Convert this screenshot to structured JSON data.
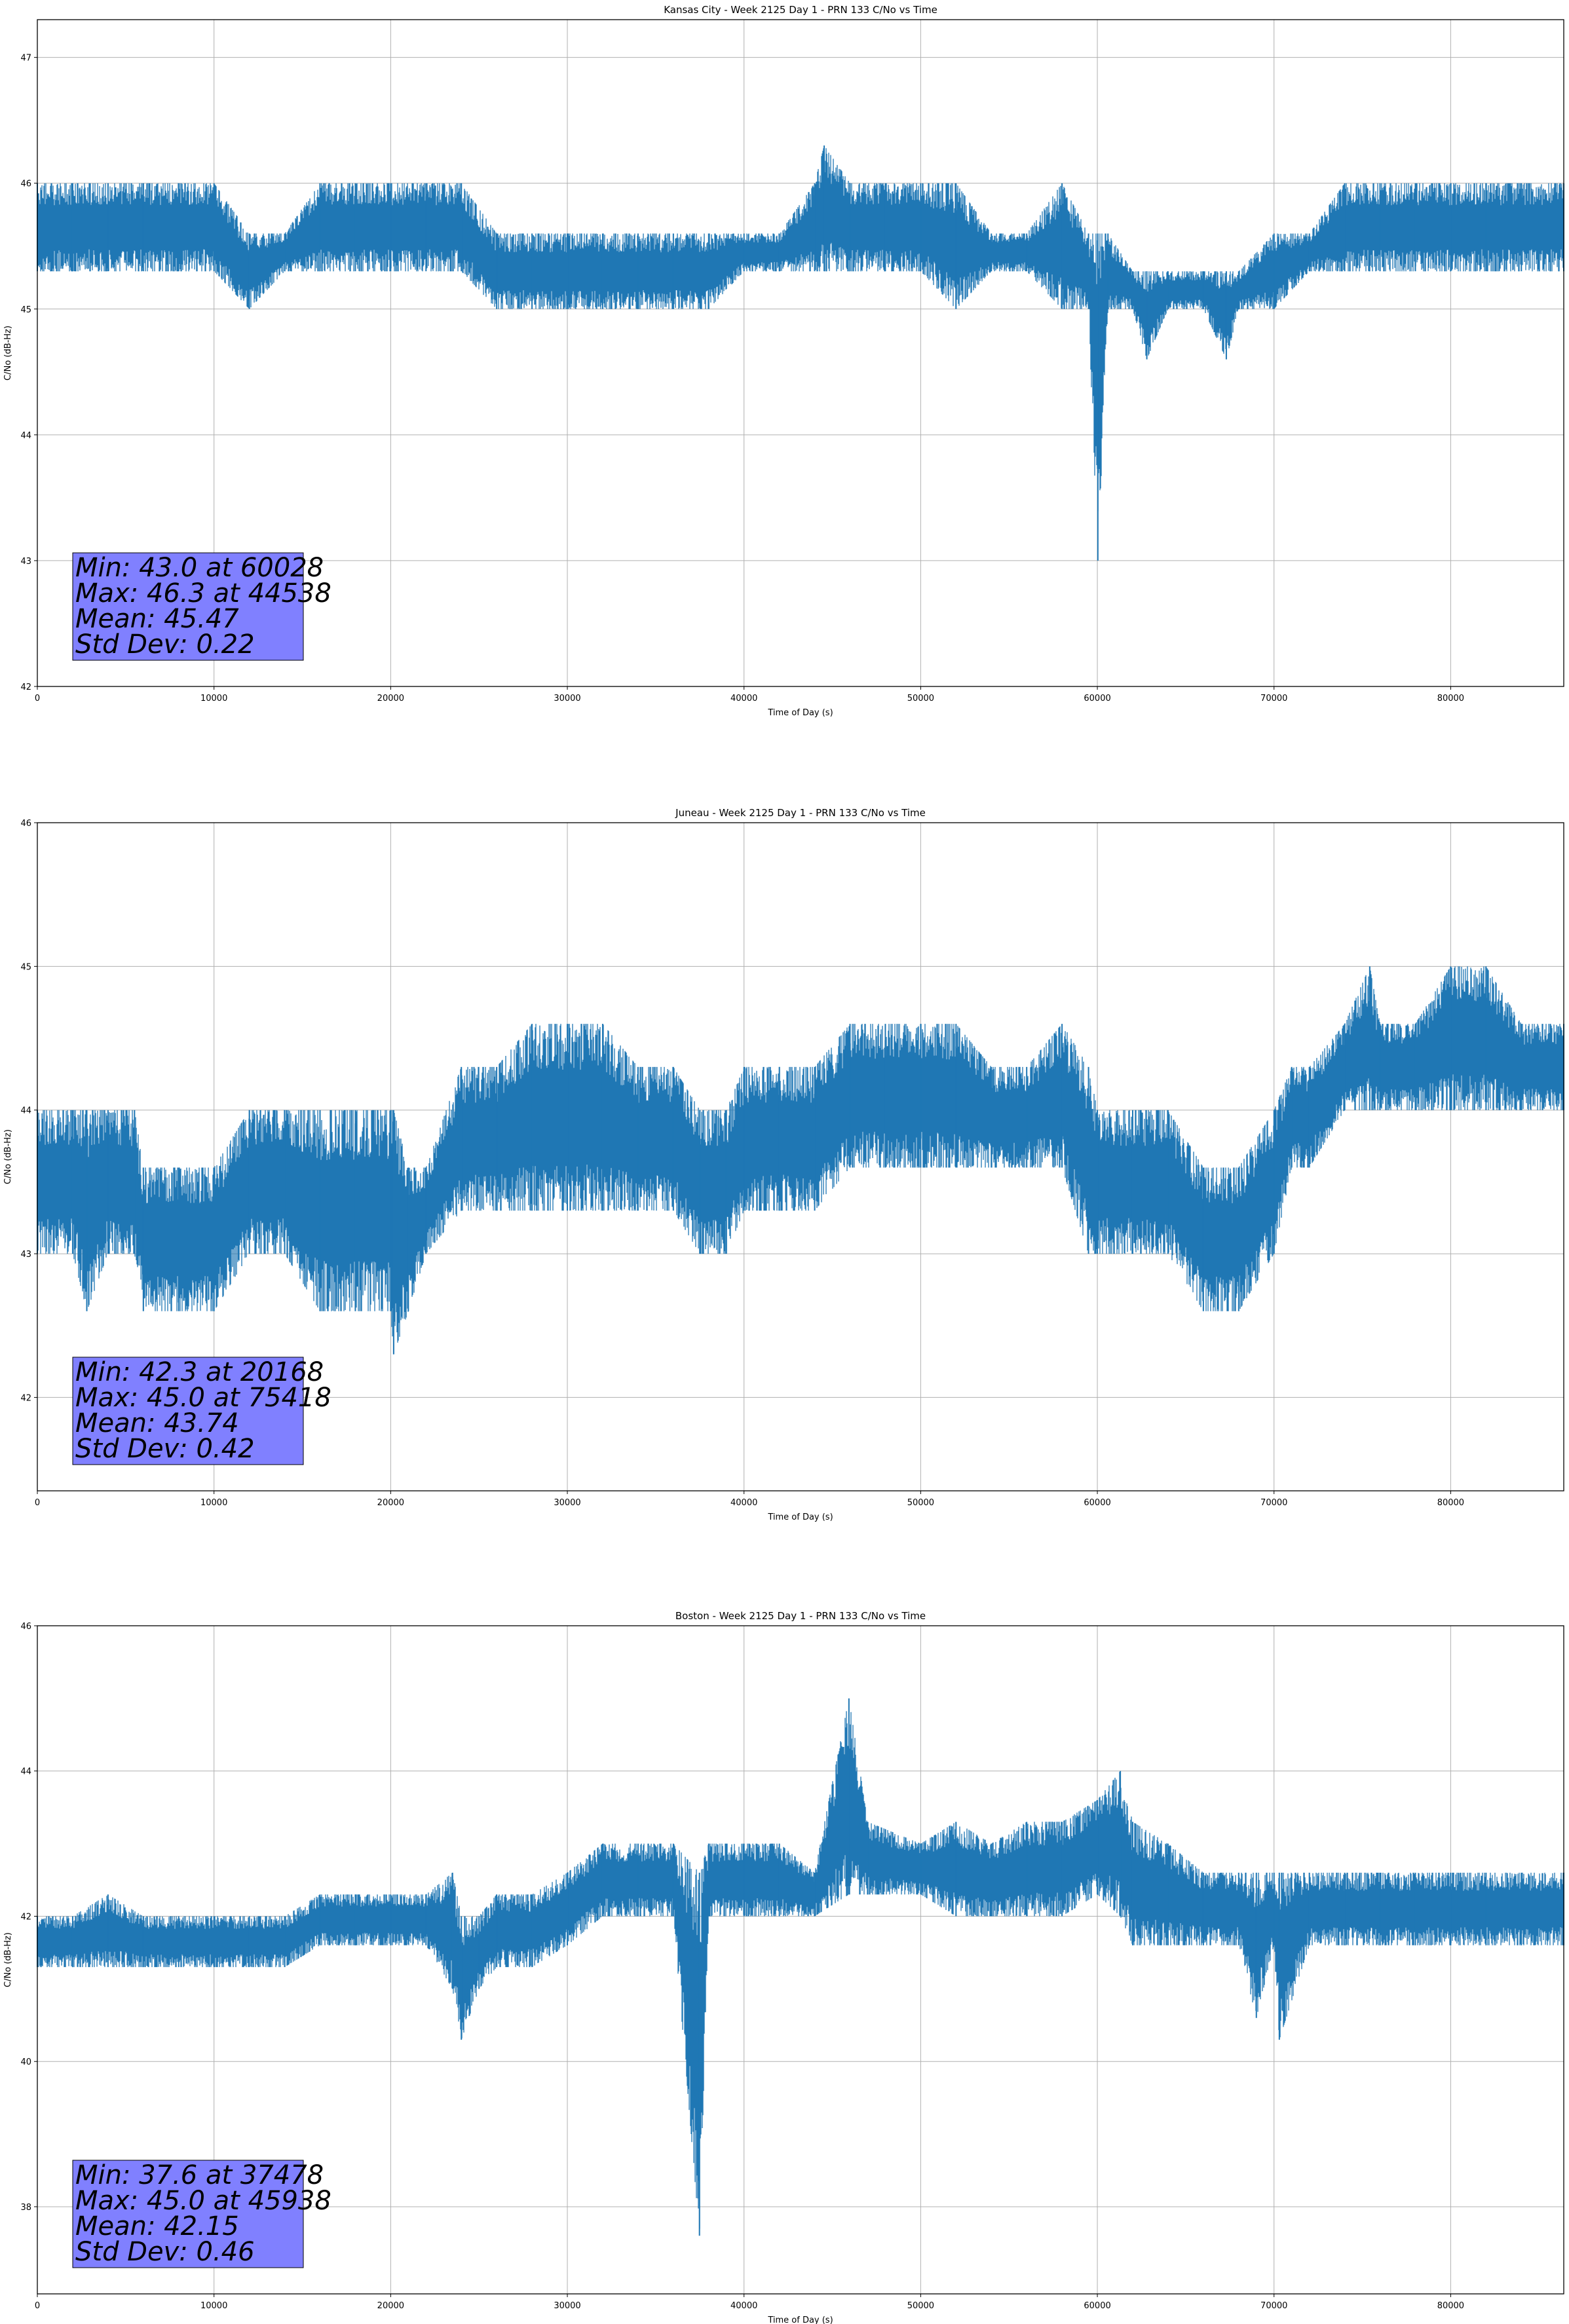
{
  "chart_data": [
    {
      "type": "line",
      "title": "Kansas City - Week 2125 Day 1 - PRN 133 C/No vs Time",
      "xlabel": "Time of Day (s)",
      "ylabel": "C/No (dB-Hz)",
      "xlim": [
        0,
        86400
      ],
      "ylim": [
        42,
        47.3
      ],
      "xticks": [
        0,
        10000,
        20000,
        30000,
        40000,
        50000,
        60000,
        70000,
        80000
      ],
      "yticks": [
        42,
        43,
        44,
        45,
        46,
        47
      ],
      "grid": true,
      "color": "#1f77b4",
      "stats": [
        "Min: 43.0 at 60028",
        "Max: 46.3 at 44538",
        "Mean: 45.47",
        "Std Dev: 0.22"
      ],
      "series": [
        {
          "x": [
            0,
            2000,
            4000,
            6000,
            8000,
            10000,
            12000,
            14000,
            16000,
            18000,
            20000,
            22000,
            24000,
            26000,
            28000,
            30000,
            32000,
            34000,
            36000,
            38000,
            40000,
            42000,
            44000,
            44538,
            46000,
            48000,
            50000,
            52000,
            54000,
            56000,
            58000,
            59500,
            60028,
            60600,
            62000,
            62800,
            64000,
            66000,
            67300,
            68000,
            70000,
            72000,
            74000,
            76000,
            78000,
            80000,
            82000,
            84000,
            86400
          ],
          "y_low": [
            45.3,
            45.3,
            45.3,
            45.3,
            45.3,
            45.3,
            45.0,
            45.3,
            45.3,
            45.3,
            45.3,
            45.3,
            45.3,
            45.0,
            45.0,
            45.0,
            45.0,
            45.0,
            45.0,
            45.0,
            45.3,
            45.3,
            45.3,
            45.3,
            45.3,
            45.3,
            45.3,
            45.0,
            45.3,
            45.3,
            45.0,
            45.0,
            43.0,
            45.0,
            45.0,
            44.6,
            45.0,
            45.0,
            44.6,
            45.0,
            45.0,
            45.3,
            45.3,
            45.3,
            45.3,
            45.3,
            45.3,
            45.3,
            45.3
          ],
          "y_high": [
            46.0,
            46.0,
            46.0,
            46.0,
            46.0,
            46.0,
            45.6,
            45.6,
            46.0,
            46.0,
            46.0,
            46.0,
            46.0,
            45.6,
            45.6,
            45.6,
            45.6,
            45.6,
            45.6,
            45.6,
            45.6,
            45.6,
            46.0,
            46.3,
            46.0,
            46.0,
            46.0,
            46.0,
            45.6,
            45.6,
            46.0,
            45.6,
            45.6,
            45.6,
            45.3,
            45.3,
            45.3,
            45.3,
            45.3,
            45.3,
            45.6,
            45.6,
            46.0,
            46.0,
            46.0,
            46.0,
            46.0,
            46.0,
            46.0
          ]
        }
      ]
    },
    {
      "type": "line",
      "title": "Juneau - Week 2125 Day 1 - PRN 133 C/No vs Time",
      "xlabel": "Time of Day (s)",
      "ylabel": "C/No (dB-Hz)",
      "xlim": [
        0,
        86400
      ],
      "ylim": [
        41.35,
        46
      ],
      "xticks": [
        0,
        10000,
        20000,
        30000,
        40000,
        50000,
        60000,
        70000,
        80000
      ],
      "yticks": [
        42,
        43,
        44,
        45,
        46
      ],
      "grid": true,
      "color": "#1f77b4",
      "stats": [
        "Min: 42.3 at 20168",
        "Max: 45.0 at 75418",
        "Mean: 43.74",
        "Std Dev: 0.42"
      ],
      "series": [
        {
          "x": [
            0,
            2000,
            2800,
            4000,
            5500,
            6000,
            8000,
            10000,
            12000,
            14000,
            16000,
            18000,
            20000,
            20168,
            21000,
            22000,
            24000,
            26000,
            28000,
            30000,
            32000,
            34000,
            36000,
            37500,
            39000,
            40000,
            42000,
            44000,
            46000,
            48000,
            50000,
            52000,
            54000,
            56000,
            58000,
            59500,
            60000,
            62000,
            64000,
            66000,
            68000,
            70000,
            71000,
            72000,
            74000,
            75418,
            76000,
            78000,
            80000,
            82000,
            84000,
            86400
          ],
          "y_low": [
            43.0,
            43.0,
            42.6,
            43.0,
            43.0,
            42.6,
            42.6,
            42.6,
            43.0,
            43.0,
            42.6,
            42.6,
            42.6,
            42.3,
            42.6,
            43.0,
            43.3,
            43.3,
            43.3,
            43.3,
            43.3,
            43.3,
            43.3,
            43.0,
            43.0,
            43.3,
            43.3,
            43.3,
            43.6,
            43.6,
            43.6,
            43.6,
            43.6,
            43.6,
            43.6,
            43.0,
            43.0,
            43.0,
            43.0,
            42.6,
            42.6,
            43.0,
            43.6,
            43.6,
            44.0,
            44.0,
            44.0,
            44.0,
            44.0,
            44.0,
            44.0,
            44.0
          ],
          "y_high": [
            44.0,
            44.0,
            44.0,
            44.0,
            44.0,
            43.6,
            43.6,
            43.6,
            44.0,
            44.0,
            44.0,
            44.0,
            44.0,
            44.0,
            43.6,
            43.6,
            44.3,
            44.3,
            44.6,
            44.6,
            44.6,
            44.3,
            44.3,
            44.0,
            44.0,
            44.3,
            44.3,
            44.3,
            44.6,
            44.6,
            44.6,
            44.6,
            44.3,
            44.3,
            44.6,
            44.3,
            44.0,
            44.0,
            44.0,
            43.6,
            43.6,
            44.0,
            44.3,
            44.3,
            44.6,
            45.0,
            44.6,
            44.6,
            45.0,
            45.0,
            44.6,
            44.6
          ]
        }
      ]
    },
    {
      "type": "line",
      "title": "Boston - Week 2125 Day 1 - PRN 133 C/No vs Time",
      "xlabel": "Time of Day (s)",
      "ylabel": "C/No (dB-Hz)",
      "xlim": [
        0,
        86400
      ],
      "ylim": [
        36.8,
        46
      ],
      "xticks": [
        0,
        10000,
        20000,
        30000,
        40000,
        50000,
        60000,
        70000,
        80000
      ],
      "yticks": [
        38,
        40,
        42,
        44,
        46
      ],
      "grid": true,
      "color": "#1f77b4",
      "stats": [
        "Min: 37.6 at 37478",
        "Max: 45.0 at 45938",
        "Mean: 42.15",
        "Std Dev: 0.46"
      ],
      "series": [
        {
          "x": [
            0,
            2000,
            4000,
            6000,
            8000,
            10000,
            12000,
            14000,
            16000,
            18000,
            20000,
            22000,
            23500,
            24000,
            25000,
            26000,
            28000,
            30000,
            32000,
            34000,
            36000,
            37478,
            38000,
            40000,
            42000,
            44000,
            45938,
            47000,
            50000,
            52000,
            54000,
            56000,
            58000,
            60000,
            61300,
            62000,
            64000,
            66000,
            68000,
            69000,
            70000,
            70300,
            72000,
            74000,
            76000,
            78000,
            80000,
            82000,
            84000,
            86400
          ],
          "y_low": [
            41.3,
            41.3,
            41.3,
            41.3,
            41.3,
            41.3,
            41.3,
            41.3,
            41.6,
            41.6,
            41.6,
            41.6,
            41.0,
            40.3,
            41.0,
            41.3,
            41.3,
            41.6,
            42.0,
            42.0,
            42.0,
            37.6,
            42.0,
            42.0,
            42.0,
            42.0,
            42.3,
            42.3,
            42.3,
            42.0,
            42.0,
            42.0,
            42.0,
            42.3,
            42.0,
            41.6,
            41.6,
            41.6,
            41.6,
            40.6,
            41.6,
            40.3,
            41.6,
            41.6,
            41.6,
            41.6,
            41.6,
            41.6,
            41.6,
            41.6
          ],
          "y_high": [
            42.0,
            42.0,
            42.3,
            42.0,
            42.0,
            42.0,
            42.0,
            42.0,
            42.3,
            42.3,
            42.3,
            42.3,
            42.6,
            42.0,
            42.0,
            42.3,
            42.3,
            42.6,
            43.0,
            43.0,
            43.0,
            42.6,
            43.0,
            43.0,
            43.0,
            42.6,
            45.0,
            43.3,
            43.0,
            43.3,
            43.0,
            43.3,
            43.3,
            43.6,
            44.0,
            43.3,
            43.0,
            42.6,
            42.6,
            42.6,
            42.6,
            42.6,
            42.6,
            42.6,
            42.6,
            42.6,
            42.6,
            42.6,
            42.6,
            42.6
          ]
        }
      ]
    }
  ]
}
